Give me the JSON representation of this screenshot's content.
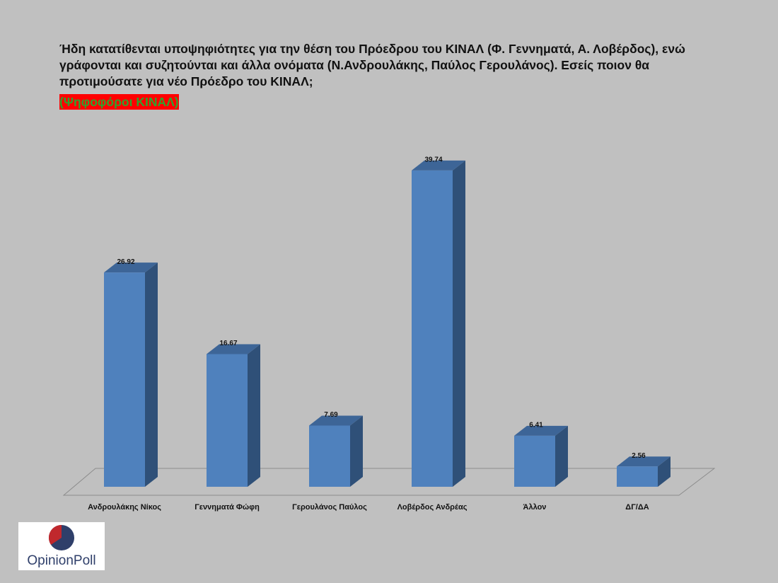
{
  "chart_data": {
    "type": "bar3d",
    "title": "Ήδη κατατίθενται υποψηφιότητες για την θέση του Πρόεδρου του ΚΙΝΑΛ (Φ. Γεννηματά, Α. Λοβέρδος), ενώ γράφονται και συζητούνται και άλλα ονόματα (Ν.Ανδρουλάκης, Παύλος Γερουλάνος). Εσείς ποιον θα προτιμούσατε για νέο Πρόεδρο του ΚΙΝΑΛ;",
    "subtitle": "(Ψηφοφόροι ΚΙΝΑΛ)",
    "categories": [
      "Ανδρουλάκης Νίκος",
      "Γεννηματά Φώφη",
      "Γερουλάνος Παύλος",
      "Λοβέρδος Ανδρέας",
      "Άλλον",
      "ΔΓ/ΔΑ"
    ],
    "values": [
      26.92,
      16.67,
      7.69,
      39.74,
      6.41,
      2.56
    ],
    "color": "#4f81bd"
  },
  "logo": "OpinionPoll"
}
